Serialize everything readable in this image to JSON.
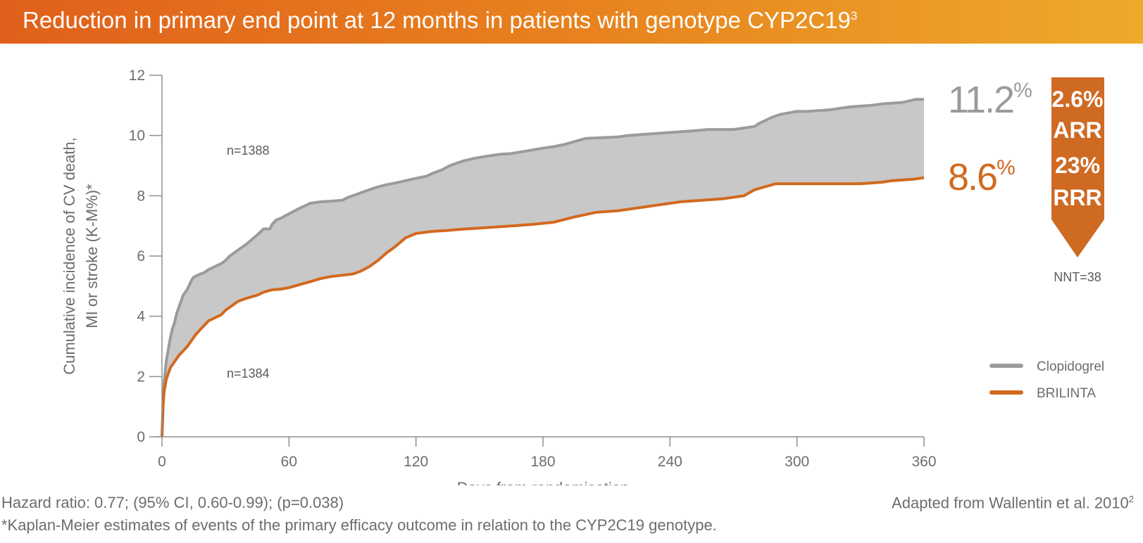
{
  "banner": {
    "title": "Reduction in primary end point at 12 months in patients with genotype CYP2C19",
    "title_sup": "3"
  },
  "colors": {
    "clopidogrel": "#9b9b9b",
    "brilinta": "#d2691e",
    "fill": "#c8c8c8",
    "arrow": "#cf6a23"
  },
  "chart_data": {
    "type": "line",
    "xlabel": "Days from randomisation",
    "ylabel_lines": [
      "Cumulative incidence of CV death,",
      "MI or stroke (K-M%)*"
    ],
    "xlim": [
      0,
      360
    ],
    "ylim": [
      0,
      12
    ],
    "xticks": [
      0,
      60,
      120,
      180,
      240,
      300,
      360
    ],
    "yticks": [
      0,
      2,
      4,
      6,
      8,
      10,
      12
    ],
    "grid": false,
    "legend_position": "bottom-right",
    "series": [
      {
        "name": "Clopidogrel",
        "n_label": "n=1388",
        "end_label": "11.2",
        "end_label_suffix": "%",
        "x": [
          0,
          0.5,
          1,
          2,
          3,
          4,
          5,
          6,
          7,
          8,
          9,
          10,
          12,
          14,
          15,
          18,
          20,
          22,
          25,
          28,
          30,
          32,
          33,
          36,
          40,
          45,
          48,
          51,
          52,
          54,
          56,
          60,
          64,
          70,
          75,
          80,
          85,
          88,
          92,
          96,
          100,
          105,
          112,
          118,
          125,
          128,
          132,
          136,
          142,
          148,
          155,
          160,
          165,
          175,
          180,
          185,
          190,
          195,
          200,
          205,
          215,
          220,
          230,
          240,
          250,
          258,
          270,
          280,
          282,
          285,
          288,
          292,
          300,
          305,
          315,
          320,
          325,
          335,
          340,
          350,
          356,
          360
        ],
        "y": [
          0,
          1.0,
          1.8,
          2.5,
          2.9,
          3.3,
          3.6,
          3.8,
          4.1,
          4.3,
          4.5,
          4.7,
          4.9,
          5.2,
          5.3,
          5.4,
          5.45,
          5.55,
          5.65,
          5.75,
          5.85,
          6.0,
          6.05,
          6.2,
          6.4,
          6.7,
          6.9,
          6.9,
          7.05,
          7.2,
          7.25,
          7.4,
          7.55,
          7.75,
          7.8,
          7.82,
          7.85,
          7.95,
          8.05,
          8.15,
          8.25,
          8.35,
          8.45,
          8.55,
          8.65,
          8.75,
          8.85,
          9.0,
          9.15,
          9.25,
          9.33,
          9.38,
          9.4,
          9.52,
          9.58,
          9.63,
          9.7,
          9.8,
          9.9,
          9.92,
          9.95,
          10.0,
          10.05,
          10.1,
          10.15,
          10.2,
          10.2,
          10.3,
          10.4,
          10.5,
          10.6,
          10.7,
          10.8,
          10.8,
          10.85,
          10.9,
          10.95,
          11.0,
          11.05,
          11.1,
          11.2,
          11.2
        ]
      },
      {
        "name": "BRILINTA",
        "n_label": "n=1384",
        "end_label": "8.6",
        "end_label_suffix": "%",
        "x": [
          0,
          0.5,
          1,
          2,
          3,
          4,
          6,
          8,
          10,
          12,
          14,
          16,
          18,
          20,
          22,
          25,
          28,
          30,
          33,
          36,
          40,
          45,
          48,
          52,
          56,
          60,
          65,
          70,
          75,
          80,
          85,
          90,
          94,
          98,
          102,
          106,
          110,
          115,
          120,
          128,
          135,
          140,
          148,
          155,
          165,
          175,
          185,
          195,
          205,
          215,
          225,
          235,
          245,
          255,
          265,
          275,
          280,
          285,
          290,
          300,
          310,
          320,
          330,
          340,
          345,
          355,
          360
        ],
        "y": [
          0,
          1.0,
          1.5,
          1.9,
          2.1,
          2.3,
          2.5,
          2.7,
          2.85,
          3.0,
          3.2,
          3.4,
          3.55,
          3.7,
          3.85,
          3.95,
          4.05,
          4.2,
          4.35,
          4.5,
          4.6,
          4.7,
          4.8,
          4.88,
          4.9,
          4.95,
          5.05,
          5.15,
          5.25,
          5.32,
          5.36,
          5.4,
          5.5,
          5.65,
          5.85,
          6.1,
          6.3,
          6.6,
          6.75,
          6.82,
          6.85,
          6.88,
          6.92,
          6.95,
          7.0,
          7.05,
          7.12,
          7.3,
          7.45,
          7.5,
          7.6,
          7.7,
          7.8,
          7.85,
          7.9,
          8.0,
          8.2,
          8.3,
          8.4,
          8.4,
          8.4,
          8.4,
          8.4,
          8.45,
          8.5,
          8.55,
          8.6
        ]
      }
    ]
  },
  "outcome_box": {
    "arr_value": "2.6%",
    "arr_label": "ARR",
    "rrr_value": "23%",
    "rrr_label": "RRR",
    "nnt": "NNT=38"
  },
  "footer": {
    "hazard": "Hazard ratio: 0.77; (95% CI, 0.60-0.99); (p=0.038)",
    "source": "Adapted from Wallentin et al. 2010",
    "source_sup": "2",
    "footnote": "*Kaplan-Meier estimates of events of the primary efficacy outcome in relation to the CYP2C19 genotype."
  }
}
